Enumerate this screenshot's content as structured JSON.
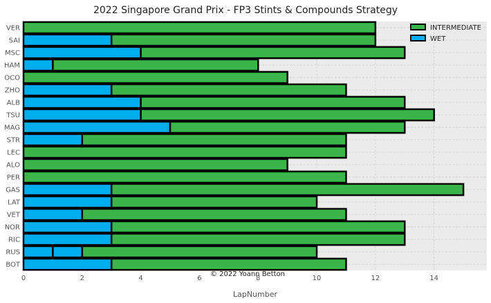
{
  "chart_data": {
    "type": "bar",
    "orientation": "horizontal",
    "stacked": true,
    "title": "2022 Singapore Grand Prix - FP3 Stints & Compounds Strategy",
    "xlabel": "LapNumber",
    "ylabel": "",
    "xlim": [
      0,
      15.8
    ],
    "xticks": [
      0,
      2,
      4,
      6,
      8,
      10,
      12,
      14
    ],
    "grid": true,
    "legend_position": "top-right",
    "credit": "© 2022 Yoann Betton",
    "compounds": [
      {
        "name": "INTERMEDIATE",
        "color": "#39b54a"
      },
      {
        "name": "WET",
        "color": "#00aeef"
      }
    ],
    "drivers": [
      {
        "driver": "VER",
        "stints": [
          {
            "compound": "INTERMEDIATE",
            "laps": 12
          }
        ]
      },
      {
        "driver": "SAI",
        "stints": [
          {
            "compound": "WET",
            "laps": 3
          },
          {
            "compound": "INTERMEDIATE",
            "laps": 9
          }
        ]
      },
      {
        "driver": "MSC",
        "stints": [
          {
            "compound": "WET",
            "laps": 4
          },
          {
            "compound": "INTERMEDIATE",
            "laps": 9
          }
        ]
      },
      {
        "driver": "HAM",
        "stints": [
          {
            "compound": "WET",
            "laps": 1
          },
          {
            "compound": "INTERMEDIATE",
            "laps": 7
          }
        ]
      },
      {
        "driver": "OCO",
        "stints": [
          {
            "compound": "INTERMEDIATE",
            "laps": 9
          }
        ]
      },
      {
        "driver": "ZHO",
        "stints": [
          {
            "compound": "WET",
            "laps": 3
          },
          {
            "compound": "INTERMEDIATE",
            "laps": 8
          }
        ]
      },
      {
        "driver": "ALB",
        "stints": [
          {
            "compound": "WET",
            "laps": 4
          },
          {
            "compound": "INTERMEDIATE",
            "laps": 9
          }
        ]
      },
      {
        "driver": "TSU",
        "stints": [
          {
            "compound": "WET",
            "laps": 4
          },
          {
            "compound": "INTERMEDIATE",
            "laps": 10
          }
        ]
      },
      {
        "driver": "MAG",
        "stints": [
          {
            "compound": "WET",
            "laps": 5
          },
          {
            "compound": "INTERMEDIATE",
            "laps": 8
          }
        ]
      },
      {
        "driver": "STR",
        "stints": [
          {
            "compound": "WET",
            "laps": 2
          },
          {
            "compound": "INTERMEDIATE",
            "laps": 9
          }
        ]
      },
      {
        "driver": "LEC",
        "stints": [
          {
            "compound": "INTERMEDIATE",
            "laps": 11
          }
        ]
      },
      {
        "driver": "ALO",
        "stints": [
          {
            "compound": "INTERMEDIATE",
            "laps": 9
          }
        ]
      },
      {
        "driver": "PER",
        "stints": [
          {
            "compound": "INTERMEDIATE",
            "laps": 11
          }
        ]
      },
      {
        "driver": "GAS",
        "stints": [
          {
            "compound": "WET",
            "laps": 3
          },
          {
            "compound": "INTERMEDIATE",
            "laps": 12
          }
        ]
      },
      {
        "driver": "LAT",
        "stints": [
          {
            "compound": "WET",
            "laps": 3
          },
          {
            "compound": "INTERMEDIATE",
            "laps": 7
          }
        ]
      },
      {
        "driver": "VET",
        "stints": [
          {
            "compound": "WET",
            "laps": 2
          },
          {
            "compound": "INTERMEDIATE",
            "laps": 9
          }
        ]
      },
      {
        "driver": "NOR",
        "stints": [
          {
            "compound": "WET",
            "laps": 3
          },
          {
            "compound": "INTERMEDIATE",
            "laps": 10
          }
        ]
      },
      {
        "driver": "RIC",
        "stints": [
          {
            "compound": "WET",
            "laps": 3
          },
          {
            "compound": "INTERMEDIATE",
            "laps": 10
          }
        ]
      },
      {
        "driver": "RUS",
        "stints": [
          {
            "compound": "WET",
            "laps": 1
          },
          {
            "compound": "WET",
            "laps": 1
          },
          {
            "compound": "INTERMEDIATE",
            "laps": 8
          }
        ]
      },
      {
        "driver": "BOT",
        "stints": [
          {
            "compound": "WET",
            "laps": 3
          },
          {
            "compound": "INTERMEDIATE",
            "laps": 8
          }
        ]
      }
    ]
  }
}
